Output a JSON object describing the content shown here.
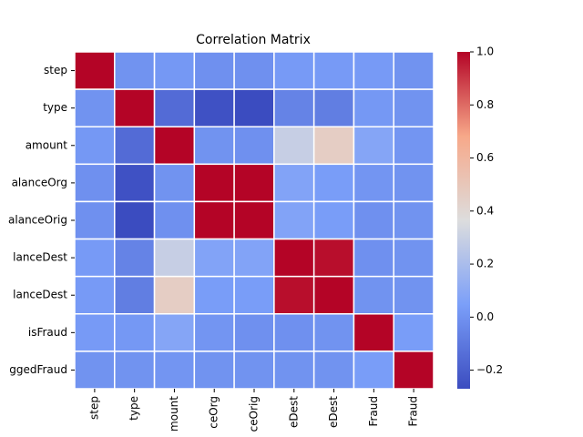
{
  "chart_data": {
    "type": "heatmap",
    "title": "Correlation Matrix",
    "y_categories": [
      "step",
      "type",
      "amount",
      "alanceOrg",
      "alanceOrig",
      "lanceDest",
      "lanceDest",
      "isFraud",
      "ggedFraud"
    ],
    "x_categories": [
      "step",
      "type",
      "mount",
      "ceOrg",
      "ceOrig",
      "eDest",
      "eDest",
      "Fraud",
      "Fraud"
    ],
    "values": [
      [
        1,
        0.0,
        0.02,
        -0.01,
        -0.01,
        0.03,
        0.03,
        0.03,
        0.0
      ],
      [
        0.0,
        1,
        -0.15,
        -0.25,
        -0.27,
        -0.06,
        -0.08,
        0.02,
        0.0
      ],
      [
        0.02,
        -0.15,
        1,
        0.0,
        -0.01,
        0.29,
        0.46,
        0.08,
        0.01
      ],
      [
        -0.01,
        -0.25,
        0.0,
        1,
        1,
        0.07,
        0.04,
        0.01,
        0.0
      ],
      [
        -0.01,
        -0.27,
        -0.01,
        1,
        1,
        0.07,
        0.04,
        -0.01,
        0.0
      ],
      [
        0.03,
        -0.06,
        0.29,
        0.07,
        0.07,
        1,
        0.98,
        -0.01,
        0.0
      ],
      [
        0.03,
        -0.08,
        0.46,
        0.04,
        0.04,
        0.98,
        1,
        0.0,
        0.0
      ],
      [
        0.03,
        0.02,
        0.08,
        0.01,
        -0.01,
        -0.01,
        0.0,
        1,
        0.04
      ],
      [
        0.0,
        0.0,
        0.01,
        0.0,
        0.0,
        0.0,
        0.0,
        0.04,
        1
      ]
    ],
    "colormap": "coolwarm",
    "colorscale": [
      "#3b4cc0",
      "#7b9ff9",
      "#dddddd",
      "#f7a889",
      "#b40426"
    ],
    "clim": [
      -0.27,
      1
    ],
    "cticks": [
      {
        "value": -0.2,
        "label": "−0.2"
      },
      {
        "value": 0,
        "label": "0.0"
      },
      {
        "value": 0.2,
        "label": "0.2"
      },
      {
        "value": 0.4,
        "label": "0.4"
      },
      {
        "value": 0.6,
        "label": "0.6"
      },
      {
        "value": 0.8,
        "label": "0.8"
      },
      {
        "value": 1,
        "label": "1.0"
      }
    ]
  }
}
